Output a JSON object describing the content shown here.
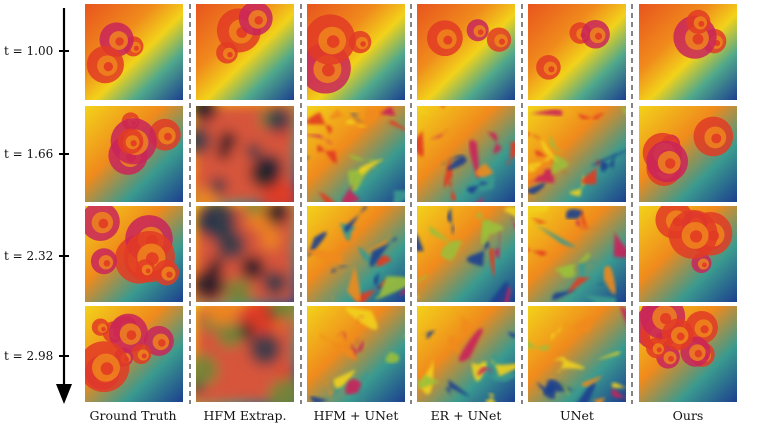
{
  "figure": {
    "columns": [
      "Ground Truth",
      "HFM Extrap.",
      "HFM + UNet",
      "ER + UNet",
      "UNet",
      "Ours"
    ],
    "rows": [
      "t = 1.00",
      "t = 1.66",
      "t = 2.32",
      "t = 2.98"
    ],
    "colors": {
      "yellow": "#f2d21a",
      "orange": "#f08a1c",
      "red": "#e23b24",
      "magenta": "#c9245a",
      "teal": "#3a9a8f",
      "blue": "#1c3f8f",
      "green": "#9bbf3a",
      "dark": "#1a1a2a"
    }
  }
}
